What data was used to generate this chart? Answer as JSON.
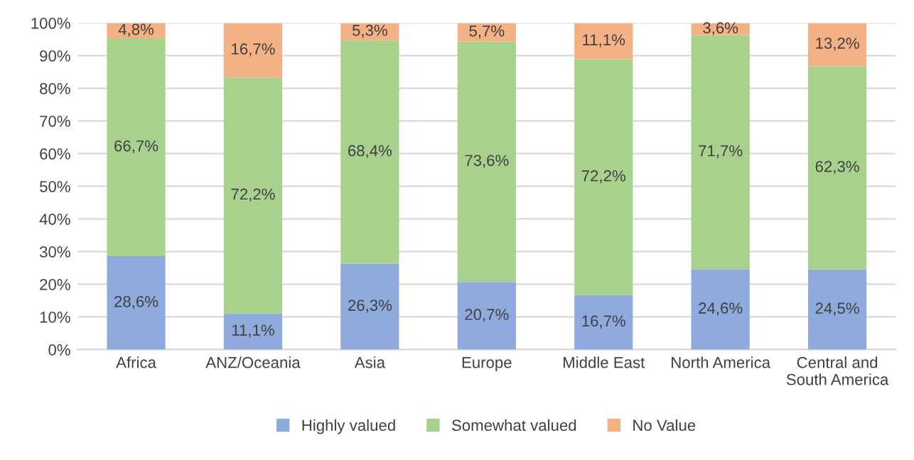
{
  "chart_data": {
    "type": "bar",
    "stacked": true,
    "categories": [
      "Africa",
      "ANZ/Oceania",
      "Asia",
      "Europe",
      "Middle East",
      "North America",
      "Central and South America"
    ],
    "series": [
      {
        "name": "Highly valued",
        "color": "#8faadc",
        "values": [
          28.6,
          11.1,
          26.3,
          20.7,
          16.7,
          24.6,
          24.5
        ],
        "value_labels": [
          "28,6%",
          "11,1%",
          "26,3%",
          "20,7%",
          "16,7%",
          "24,6%",
          "24,5%"
        ]
      },
      {
        "name": "Somewhat valued",
        "color": "#a9d18e",
        "values": [
          66.7,
          72.2,
          68.4,
          73.6,
          72.2,
          71.7,
          62.3
        ],
        "value_labels": [
          "66,7%",
          "72,2%",
          "68,4%",
          "73,6%",
          "72,2%",
          "71,7%",
          "62,3%"
        ]
      },
      {
        "name": "No Value",
        "color": "#f4b183",
        "values": [
          4.8,
          16.7,
          5.3,
          5.7,
          11.1,
          3.6,
          13.2
        ],
        "value_labels": [
          "4,8%",
          "16,7%",
          "5,3%",
          "5,7%",
          "11,1%",
          "3,6%",
          "13,2%"
        ]
      }
    ],
    "ylim": [
      0,
      100
    ],
    "yticks": [
      {
        "value": 0,
        "label": "0%"
      },
      {
        "value": 10,
        "label": "10%"
      },
      {
        "value": 20,
        "label": "20%"
      },
      {
        "value": 30,
        "label": "30%"
      },
      {
        "value": 40,
        "label": "40%"
      },
      {
        "value": 50,
        "label": "50%"
      },
      {
        "value": 60,
        "label": "60%"
      },
      {
        "value": 70,
        "label": "70%"
      },
      {
        "value": 80,
        "label": "80%"
      },
      {
        "value": 90,
        "label": "90%"
      },
      {
        "value": 100,
        "label": "100%"
      }
    ],
    "grid": "y",
    "legend": "bottom"
  }
}
